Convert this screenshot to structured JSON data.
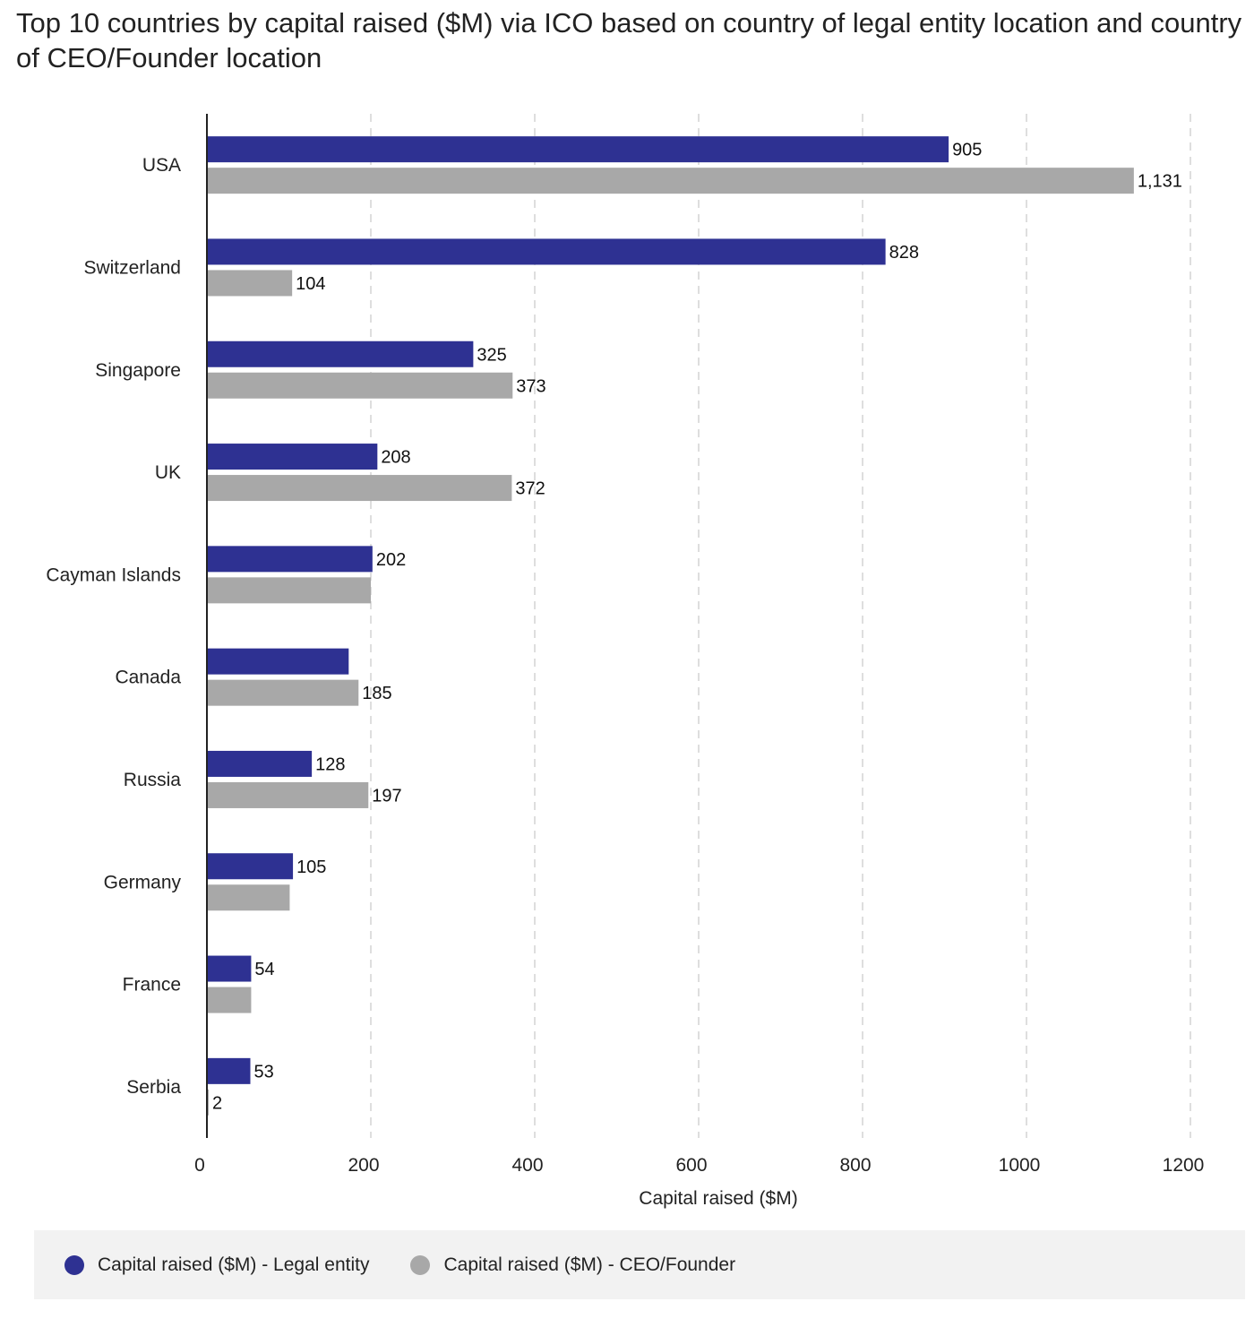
{
  "title": "Top 10 countries by capital raised ($M) via ICO based on country of legal entity location and country of CEO/Founder location",
  "chart_data": {
    "type": "bar",
    "orientation": "horizontal",
    "categories": [
      "USA",
      "Switzerland",
      "Singapore",
      "UK",
      "Cayman Islands",
      "Canada",
      "Russia",
      "Germany",
      "France",
      "Serbia"
    ],
    "series": [
      {
        "name": "Capital raised ($M) - Legal entity",
        "color": "#2e3192",
        "values": [
          905,
          828,
          325,
          208,
          202,
          173,
          128,
          105,
          54,
          53
        ],
        "labels": [
          "905",
          "828",
          "325",
          "208",
          "202",
          "",
          "128",
          "105",
          "54",
          "53"
        ]
      },
      {
        "name": "Capital raised ($M) - CEO/Founder",
        "color": "#a8a8a8",
        "values": [
          1131,
          104,
          373,
          372,
          200,
          185,
          197,
          101,
          54,
          2
        ],
        "labels": [
          "1,131",
          "104",
          "373",
          "372",
          "",
          "185",
          "197",
          "",
          "",
          "2"
        ]
      }
    ],
    "xlabel": "Capital raised ($M)",
    "xlim": [
      0,
      1200
    ],
    "xticks": [
      "0",
      "200",
      "400",
      "600",
      "800",
      "1000",
      "1200"
    ],
    "grid": "vertical-dashed",
    "legend_position": "bottom"
  }
}
